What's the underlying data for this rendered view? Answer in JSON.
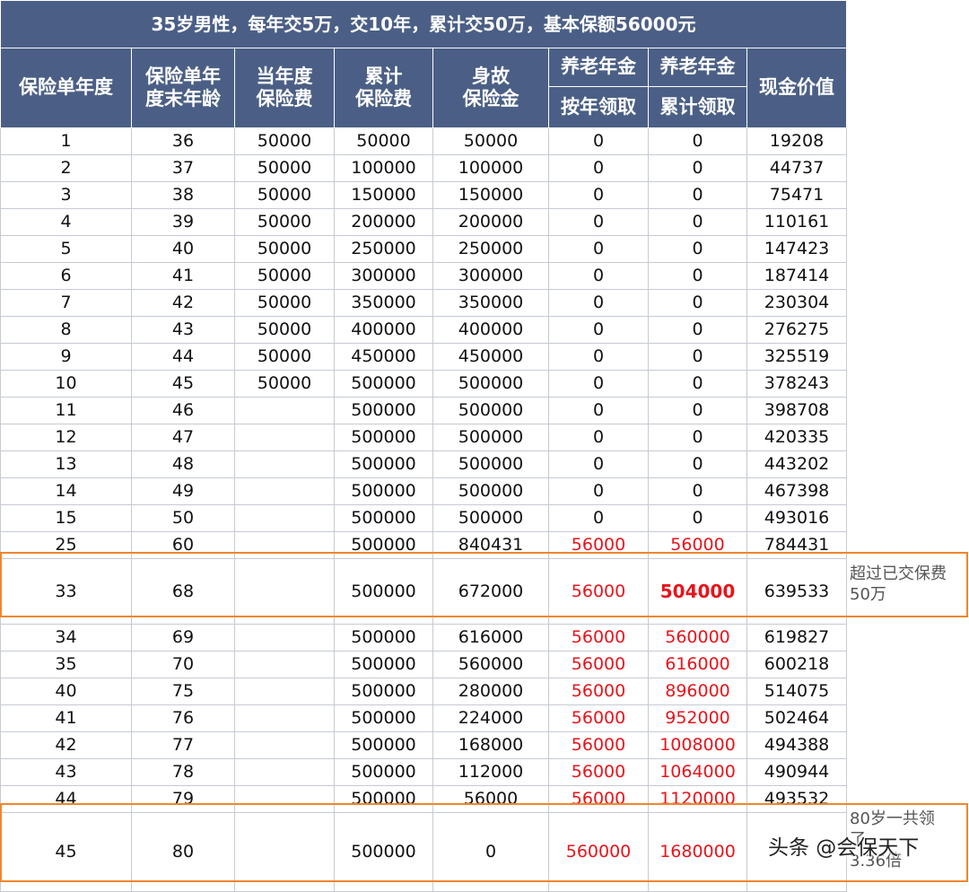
{
  "title": "35岁男性，每年交5万，交10年，累计交50万，基本保额56000元",
  "headers": {
    "policy_year": "保险单年度",
    "age": "保险单年\n度末年龄",
    "annual_premium": "当年度\n保险费",
    "cumulative_premium": "累计\n保险费",
    "death_benefit": "身故\n保险金",
    "annuity_group_1": "养老年金",
    "annuity_group_2": "养老年金",
    "annual_claim": "按年领取",
    "cumulative_claim": "累计领取",
    "cash_value": "现金价值"
  },
  "rows": [
    [
      "1",
      "36",
      "50000",
      "50000",
      "50000",
      "0",
      "0",
      "19208"
    ],
    [
      "2",
      "37",
      "50000",
      "100000",
      "100000",
      "0",
      "0",
      "44737"
    ],
    [
      "3",
      "38",
      "50000",
      "150000",
      "150000",
      "0",
      "0",
      "75471"
    ],
    [
      "4",
      "39",
      "50000",
      "200000",
      "200000",
      "0",
      "0",
      "110161"
    ],
    [
      "5",
      "40",
      "50000",
      "250000",
      "250000",
      "0",
      "0",
      "147423"
    ],
    [
      "6",
      "41",
      "50000",
      "300000",
      "300000",
      "0",
      "0",
      "187414"
    ],
    [
      "7",
      "42",
      "50000",
      "350000",
      "350000",
      "0",
      "0",
      "230304"
    ],
    [
      "8",
      "43",
      "50000",
      "400000",
      "400000",
      "0",
      "0",
      "276275"
    ],
    [
      "9",
      "44",
      "50000",
      "450000",
      "450000",
      "0",
      "0",
      "325519"
    ],
    [
      "10",
      "45",
      "50000",
      "500000",
      "500000",
      "0",
      "0",
      "378243"
    ],
    [
      "11",
      "46",
      "",
      "500000",
      "500000",
      "0",
      "0",
      "398708"
    ],
    [
      "12",
      "47",
      "",
      "500000",
      "500000",
      "0",
      "0",
      "420335"
    ],
    [
      "13",
      "48",
      "",
      "500000",
      "500000",
      "0",
      "0",
      "443202"
    ],
    [
      "14",
      "49",
      "",
      "500000",
      "500000",
      "0",
      "0",
      "467398"
    ],
    [
      "15",
      "50",
      "",
      "500000",
      "500000",
      "0",
      "0",
      "493016"
    ],
    [
      "25",
      "60",
      "",
      "500000",
      "840431",
      "56000",
      "56000",
      "784431"
    ],
    [
      "33",
      "68",
      "",
      "500000",
      "672000",
      "56000",
      "504000",
      "639533"
    ],
    [
      "34",
      "69",
      "",
      "500000",
      "616000",
      "56000",
      "560000",
      "619827"
    ],
    [
      "35",
      "70",
      "",
      "500000",
      "560000",
      "56000",
      "616000",
      "600218"
    ],
    [
      "40",
      "75",
      "",
      "500000",
      "280000",
      "56000",
      "896000",
      "514075"
    ],
    [
      "41",
      "76",
      "",
      "500000",
      "224000",
      "56000",
      "952000",
      "502464"
    ],
    [
      "42",
      "77",
      "",
      "500000",
      "168000",
      "56000",
      "1008000",
      "494388"
    ],
    [
      "43",
      "78",
      "",
      "500000",
      "112000",
      "56000",
      "1064000",
      "490944"
    ],
    [
      "44",
      "79",
      "",
      "500000",
      "56000",
      "56000",
      "1120000",
      "493532"
    ],
    [
      "45",
      "80",
      "",
      "500000",
      "0",
      "560000",
      "1680000",
      ""
    ]
  ],
  "notes": {
    "row33": "超过已交保费\n50万",
    "row45": "80岁一共领\n了\n3.36倍"
  },
  "watermark": "头条 @会保天下",
  "colors": {
    "header_bg": "#4b5f86",
    "header_text": "#ffffff",
    "highlight_border": "#f0862c",
    "annuity_text": "#e8141b"
  }
}
